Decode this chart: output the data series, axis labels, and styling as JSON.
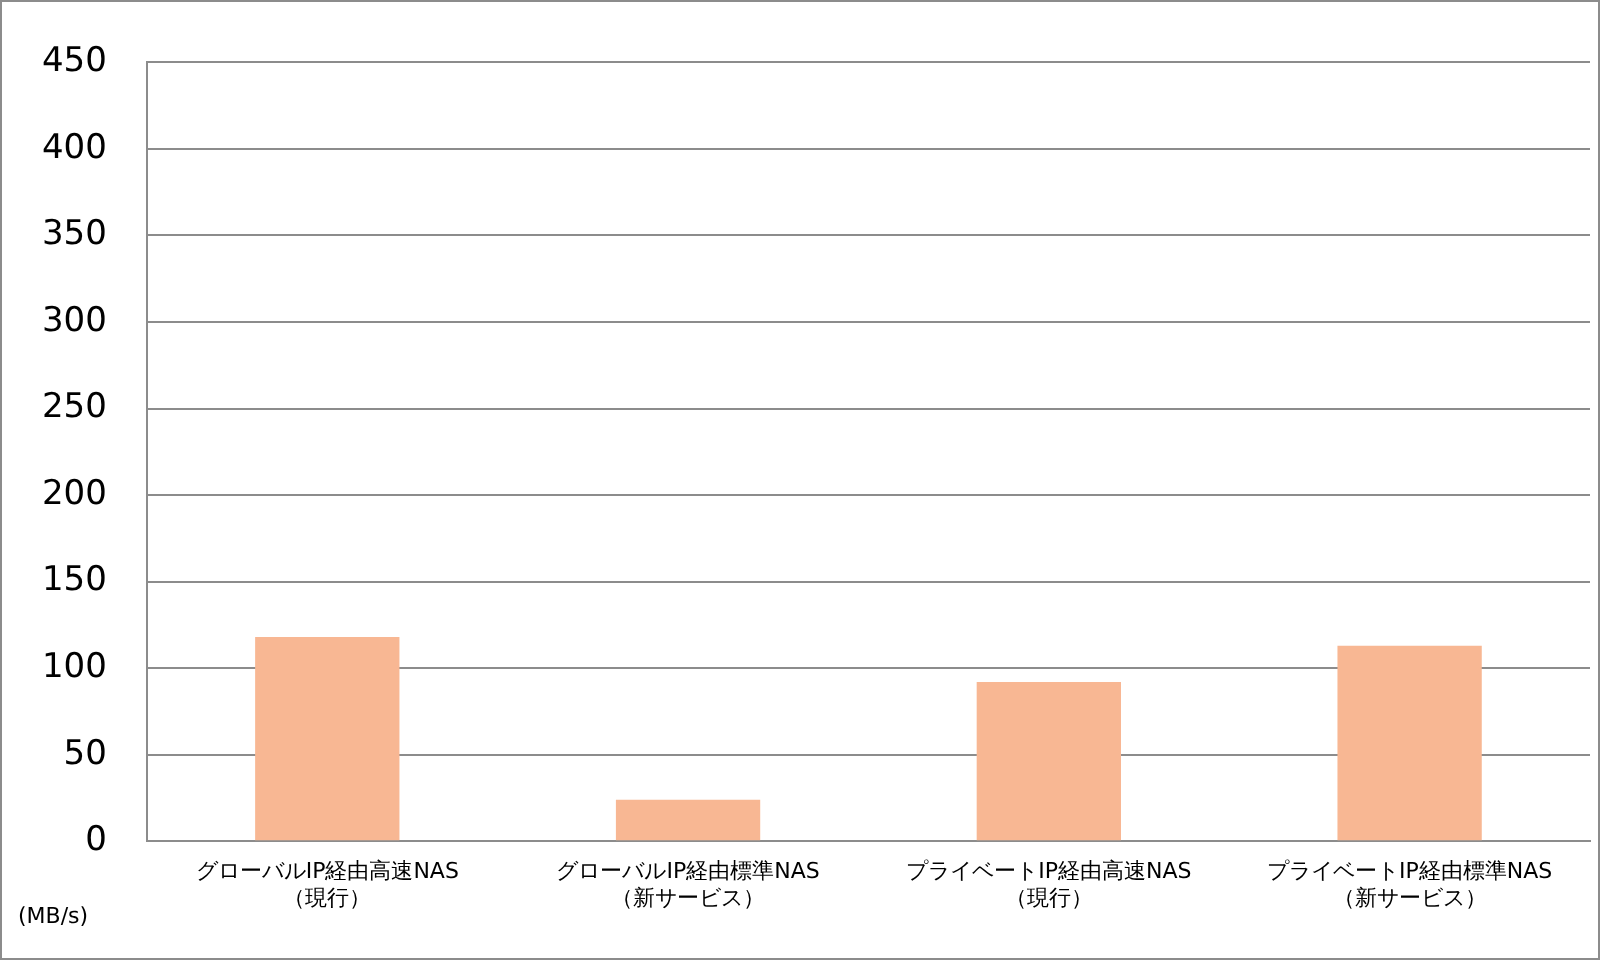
{
  "chart_data": {
    "type": "bar",
    "ylabel": "(MB/s)",
    "categories": [
      "グローバルIP経由高速NAS（現行）",
      "グローバルIP経由標準NAS（新サービス）",
      "プライベートIP経由高速NAS（現行）",
      "プライベートIP経由標準NAS（新サービス）"
    ],
    "values": [
      118,
      24,
      92,
      113
    ],
    "color": "#f8b793",
    "ylim": [
      0,
      450
    ],
    "yticks": [
      0,
      50,
      100,
      150,
      200,
      250,
      300,
      350,
      400,
      450
    ],
    "grid": "y",
    "legend": false
  }
}
